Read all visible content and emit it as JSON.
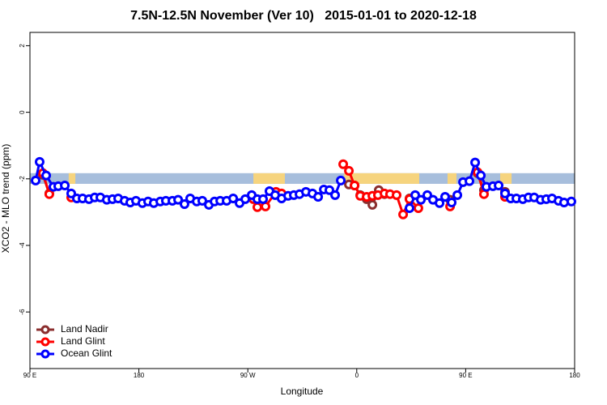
{
  "chart_data": {
    "type": "line",
    "title": "7.5N-12.5N November (Ver 10)   2015-01-01 to 2020-12-18",
    "x_label": "Longitude",
    "y_label": "XCO2 - MLO trend (ppm)",
    "xlim": [
      90,
      540
    ],
    "ylim": [
      -7.7,
      2.4
    ],
    "xticks": [
      {
        "value": 90,
        "label": "90 E"
      },
      180,
      {
        "value": 270,
        "label": "90 W"
      },
      {
        "value": 360,
        "label": "0"
      },
      {
        "value": 450,
        "label": "90 E"
      },
      180
    ],
    "yticks": [
      2,
      0,
      -2,
      -4,
      -6
    ],
    "legend_position": "bottom-left",
    "band": {
      "range": [
        -1.83,
        -2.15
      ],
      "color": "#a7bedc",
      "land_color": "#f6d47e",
      "land_segments": [
        [
          122,
          127.5
        ],
        [
          274.6,
          300.6
        ],
        [
          349.5,
          411.6
        ],
        [
          435,
          442.4
        ],
        [
          478.5,
          487.9
        ]
      ]
    },
    "series": [
      {
        "name": "Land Nadir",
        "color": "#8b2e2e",
        "x": [
          100.7,
          106,
          115,
          353.5,
          358.2,
          362.9,
          368.2,
          372.9,
          378.2,
          382.9,
          395,
          403.6,
          420,
          437.1,
          450,
          459.8,
          465.1,
          475,
          482.5
        ],
        "values": [
          -1.88,
          -2.44,
          null,
          -2.17,
          -2.2,
          -2.49,
          -2.61,
          -2.78,
          -2.34,
          -2.46,
          null,
          -2.59,
          null,
          -2.63,
          null,
          -1.83,
          -2.34,
          null,
          -2.39
        ]
      },
      {
        "name": "Land Glint",
        "color": "#ff0000",
        "x": [
          100.7,
          106,
          115,
          124.1,
          200,
          274.6,
          277.9,
          284.6,
          293.3,
          297.9,
          320,
          348.8,
          353.5,
          358.2,
          362.9,
          368.2,
          372.9,
          377.5,
          382.9,
          387.5,
          392.9,
          398.3,
          403.6,
          410.9,
          425,
          437.1,
          450,
          459.8,
          465.1,
          475,
          482.5
        ],
        "values": [
          -1.83,
          -2.46,
          null,
          -2.56,
          null,
          -2.61,
          -2.85,
          -2.83,
          -2.39,
          -2.44,
          null,
          -1.56,
          -1.76,
          -2.2,
          -2.51,
          -2.54,
          -2.51,
          -2.49,
          -2.44,
          -2.46,
          -2.49,
          -3.07,
          -2.61,
          -2.88,
          null,
          -2.83,
          null,
          -1.8,
          -2.46,
          null,
          -2.54
        ]
      },
      {
        "name": "Ocean Glint",
        "color": "#0000ff",
        "x": [
          94.7,
          98,
          103.4,
          109.4,
          113.4,
          118.8,
          124.1,
          128.8,
          133.5,
          138.8,
          143.5,
          148.2,
          153.5,
          158.2,
          162.9,
          168.2,
          172.9,
          177.6,
          182.9,
          187.6,
          192.3,
          197.7,
          202.3,
          207.7,
          212.4,
          217.7,
          222.4,
          227.8,
          232.4,
          237.8,
          242.5,
          247.2,
          252.5,
          257.9,
          263.2,
          267.9,
          273.2,
          277.9,
          282.6,
          287.9,
          292.6,
          297.9,
          303.3,
          308,
          312.7,
          318,
          323.4,
          328.1,
          332.8,
          337.4,
          342.1,
          346.8,
          375,
          403.6,
          408.3,
          413,
          418.3,
          423,
          428.4,
          433,
          438.4,
          443.1,
          447.8,
          453.1,
          457.8,
          462.5,
          467.1,
          472.5,
          477.2,
          482.5,
          487.2,
          491.9,
          497.2,
          501.9,
          506.6,
          511.9,
          516.6,
          521.3,
          526.7,
          531.3,
          537.3
        ],
        "values": [
          -2.05,
          -1.49,
          -1.9,
          -2.24,
          -2.22,
          -2.2,
          -2.44,
          -2.59,
          -2.59,
          -2.61,
          -2.56,
          -2.56,
          -2.63,
          -2.61,
          -2.59,
          -2.66,
          -2.71,
          -2.66,
          -2.73,
          -2.68,
          -2.73,
          -2.68,
          -2.66,
          -2.66,
          -2.63,
          -2.76,
          -2.59,
          -2.68,
          -2.66,
          -2.78,
          -2.68,
          -2.66,
          -2.66,
          -2.59,
          -2.73,
          -2.61,
          -2.49,
          -2.61,
          -2.61,
          -2.37,
          -2.49,
          -2.59,
          -2.51,
          -2.49,
          -2.46,
          -2.39,
          -2.44,
          -2.54,
          -2.32,
          -2.34,
          -2.49,
          -2.05,
          null,
          -2.88,
          -2.49,
          -2.63,
          -2.49,
          -2.63,
          -2.73,
          -2.54,
          -2.71,
          -2.49,
          -2.1,
          -2.07,
          -1.51,
          -1.9,
          -2.24,
          -2.22,
          -2.2,
          -2.44,
          -2.59,
          -2.59,
          -2.61,
          -2.56,
          -2.56,
          -2.63,
          -2.61,
          -2.59,
          -2.66,
          -2.71,
          -2.68
        ]
      }
    ]
  }
}
